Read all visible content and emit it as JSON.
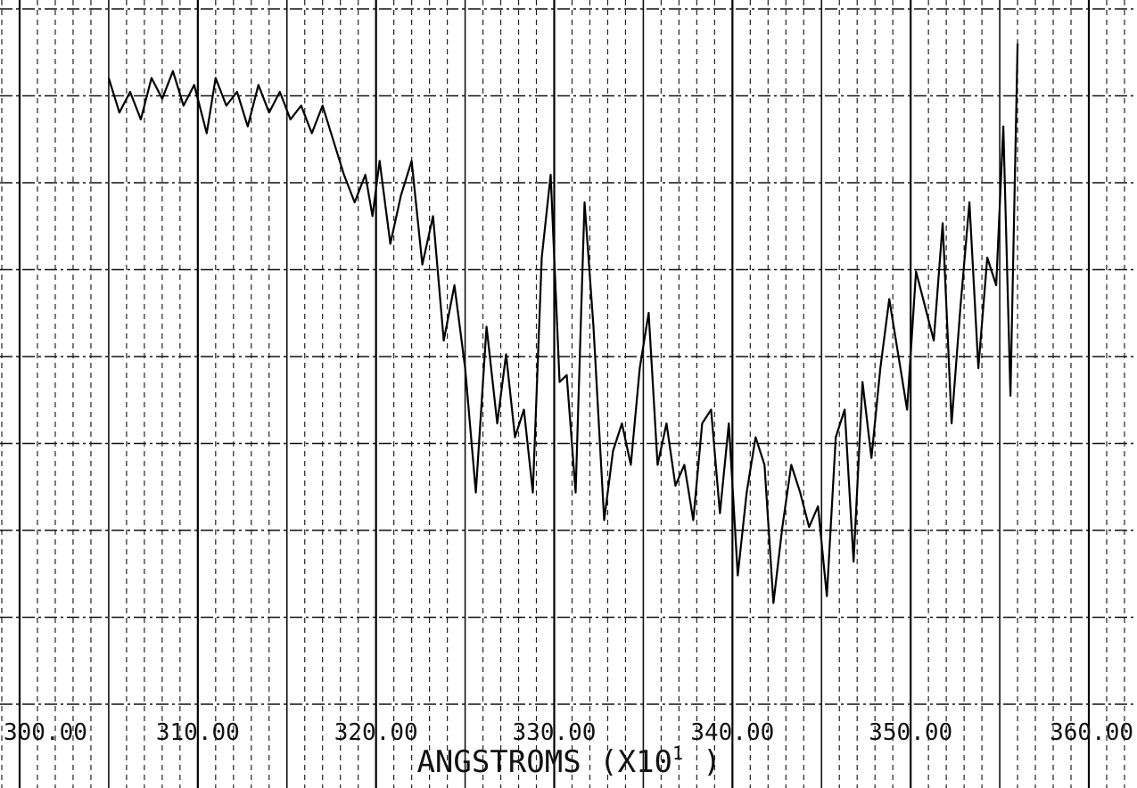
{
  "chart_data": {
    "type": "line",
    "xlabel": "ANGSTROMS (X10",
    "xlabel_exponent": "1",
    "xlabel_close": ")",
    "xlim": [
      300,
      360
    ],
    "ylim": [
      0,
      1
    ],
    "x_ticks": [
      300,
      310,
      320,
      330,
      340,
      350,
      360
    ],
    "x_tick_labels": [
      "300.00",
      "310.00",
      "320.00",
      "330.00",
      "340.00",
      "350.00",
      "360.00"
    ],
    "grid": true,
    "series": [
      {
        "x": [
          305.0,
          305.6,
          306.2,
          306.8,
          307.4,
          308.0,
          308.6,
          309.2,
          309.8,
          310.5,
          311.0,
          311.6,
          312.2,
          312.8,
          313.4,
          314.0,
          314.6,
          315.2,
          315.8,
          316.4,
          317.0,
          317.6,
          318.2,
          318.8,
          319.4,
          319.8,
          320.2,
          320.8,
          321.4,
          322.0,
          322.6,
          323.2,
          323.8,
          324.4,
          325.0,
          325.6,
          326.2,
          326.8,
          327.3,
          327.8,
          328.3,
          328.8,
          329.3,
          329.8,
          330.3,
          330.7,
          331.2,
          331.7,
          332.2,
          332.8,
          333.3,
          333.8,
          334.3,
          334.8,
          335.3,
          335.8,
          336.3,
          336.8,
          337.3,
          337.8,
          338.3,
          338.8,
          339.3,
          339.8,
          340.3,
          340.8,
          341.3,
          341.8,
          342.3,
          342.8,
          343.3,
          343.8,
          344.3,
          344.8,
          345.3,
          345.8,
          346.3,
          346.8,
          347.3,
          347.8,
          348.3,
          348.8,
          349.3,
          349.8,
          350.3,
          350.8,
          351.3,
          351.8,
          352.3,
          352.8,
          353.3,
          353.8,
          354.3,
          354.8,
          355.2,
          355.6,
          356.0
        ],
        "y": [
          0.9,
          0.85,
          0.88,
          0.84,
          0.9,
          0.87,
          0.91,
          0.86,
          0.89,
          0.82,
          0.9,
          0.86,
          0.88,
          0.83,
          0.89,
          0.85,
          0.88,
          0.84,
          0.86,
          0.82,
          0.86,
          0.81,
          0.76,
          0.72,
          0.76,
          0.7,
          0.78,
          0.66,
          0.73,
          0.78,
          0.63,
          0.7,
          0.52,
          0.6,
          0.48,
          0.3,
          0.54,
          0.4,
          0.5,
          0.38,
          0.42,
          0.3,
          0.64,
          0.76,
          0.46,
          0.47,
          0.3,
          0.72,
          0.54,
          0.26,
          0.36,
          0.4,
          0.34,
          0.48,
          0.56,
          0.34,
          0.4,
          0.31,
          0.34,
          0.26,
          0.4,
          0.42,
          0.27,
          0.4,
          0.18,
          0.3,
          0.38,
          0.34,
          0.14,
          0.25,
          0.34,
          0.3,
          0.25,
          0.28,
          0.15,
          0.38,
          0.42,
          0.2,
          0.46,
          0.35,
          0.48,
          0.58,
          0.5,
          0.42,
          0.62,
          0.57,
          0.52,
          0.69,
          0.4,
          0.57,
          0.72,
          0.48,
          0.64,
          0.6,
          0.83,
          0.44,
          0.95
        ]
      }
    ]
  }
}
